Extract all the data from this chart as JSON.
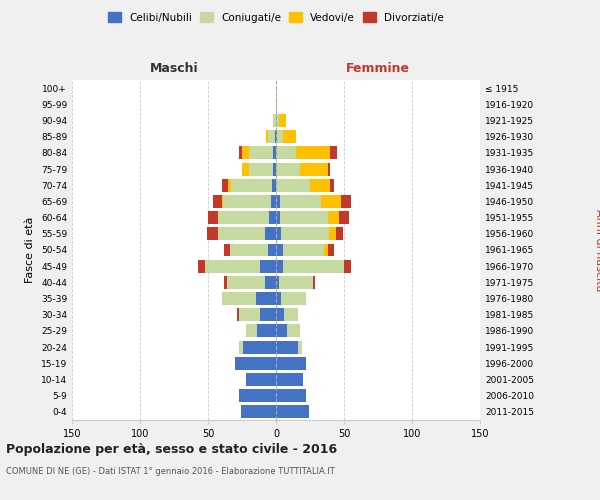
{
  "age_groups": [
    "0-4",
    "5-9",
    "10-14",
    "15-19",
    "20-24",
    "25-29",
    "30-34",
    "35-39",
    "40-44",
    "45-49",
    "50-54",
    "55-59",
    "60-64",
    "65-69",
    "70-74",
    "75-79",
    "80-84",
    "85-89",
    "90-94",
    "95-99",
    "100+"
  ],
  "birth_years": [
    "2011-2015",
    "2006-2010",
    "2001-2005",
    "1996-2000",
    "1991-1995",
    "1986-1990",
    "1981-1985",
    "1976-1980",
    "1971-1975",
    "1966-1970",
    "1961-1965",
    "1956-1960",
    "1951-1955",
    "1946-1950",
    "1941-1945",
    "1936-1940",
    "1931-1935",
    "1926-1930",
    "1921-1925",
    "1916-1920",
    "≤ 1915"
  ],
  "maschi": {
    "celibi": [
      26,
      27,
      22,
      30,
      24,
      14,
      12,
      15,
      8,
      12,
      6,
      8,
      5,
      4,
      3,
      2,
      2,
      1,
      0,
      0,
      0
    ],
    "coniugati": [
      0,
      0,
      0,
      0,
      3,
      8,
      15,
      25,
      28,
      40,
      28,
      35,
      38,
      35,
      30,
      18,
      18,
      5,
      2,
      0,
      0
    ],
    "vedovi": [
      0,
      0,
      0,
      0,
      0,
      0,
      0,
      0,
      0,
      0,
      0,
      0,
      0,
      1,
      2,
      5,
      5,
      1,
      0,
      0,
      0
    ],
    "divorziati": [
      0,
      0,
      0,
      0,
      0,
      0,
      2,
      0,
      2,
      5,
      4,
      8,
      7,
      6,
      5,
      0,
      2,
      0,
      0,
      0,
      0
    ]
  },
  "femmine": {
    "nubili": [
      24,
      22,
      20,
      22,
      16,
      8,
      6,
      4,
      2,
      5,
      5,
      4,
      3,
      3,
      0,
      0,
      0,
      1,
      0,
      0,
      0
    ],
    "coniugate": [
      0,
      0,
      0,
      0,
      3,
      10,
      10,
      18,
      25,
      45,
      30,
      35,
      35,
      30,
      25,
      18,
      15,
      4,
      2,
      0,
      0
    ],
    "vedove": [
      0,
      0,
      0,
      0,
      0,
      0,
      0,
      0,
      0,
      0,
      3,
      5,
      8,
      15,
      15,
      20,
      25,
      10,
      5,
      1,
      0
    ],
    "divorziate": [
      0,
      0,
      0,
      0,
      0,
      0,
      0,
      0,
      2,
      5,
      5,
      5,
      8,
      7,
      3,
      2,
      5,
      0,
      0,
      0,
      0
    ]
  },
  "color_celibi": "#4472c4",
  "color_coniugati": "#c5d9a1",
  "color_vedovi": "#ffc000",
  "color_divorziati": "#c0392b",
  "title": "Popolazione per età, sesso e stato civile - 2016",
  "subtitle": "COMUNE DI NE (GE) - Dati ISTAT 1° gennaio 2016 - Elaborazione TUTTITALIA.IT",
  "xlabel_left": "Maschi",
  "xlabel_right": "Femmine",
  "ylabel_left": "Fasce di età",
  "ylabel_right": "Anni di nascita",
  "xlim": 150,
  "bg_color": "#f0f0f0",
  "plot_bg_color": "#ffffff",
  "grid_color": "#cccccc"
}
